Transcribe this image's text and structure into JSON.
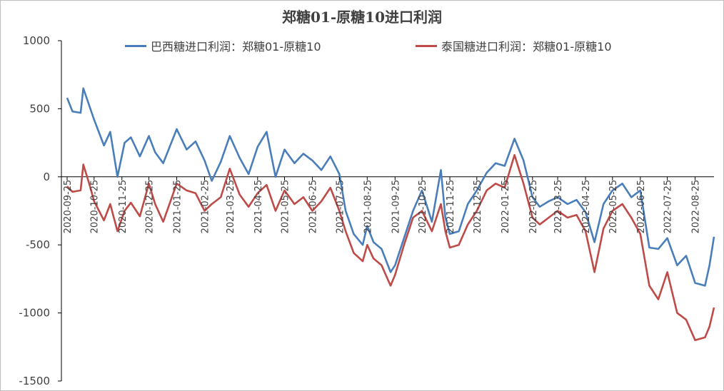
{
  "chart_data": {
    "type": "line",
    "title": "郑糖01-原糖10进口利润",
    "xlabel": "",
    "ylabel": "",
    "ylim": [
      -1500,
      1000
    ],
    "yticks": [
      1000,
      500,
      0,
      -500,
      -1000,
      -1500
    ],
    "legend_position": "top",
    "grid": false,
    "x_tick_labels": [
      "2020-09-25",
      "2020-10-25",
      "2020-11-25",
      "2020-12-25",
      "2021-01-25",
      "2021-02-25",
      "2021-03-25",
      "2021-04-25",
      "2021-05-25",
      "2021-06-25",
      "2021-07-25",
      "2021-08-25",
      "2021-09-25",
      "2021-10-25",
      "2021-11-25",
      "2021-12-25",
      "2022-01-25",
      "2022-02-25",
      "2022-03-25",
      "2022-04-25",
      "2022-05-25",
      "2022-06-25",
      "2022-07-25",
      "2022-08-25"
    ],
    "series": [
      {
        "name": "巴西糖进口利润：郑糖01-原糖10",
        "color": "#4a7ebb",
        "points": [
          [
            "2020-09-25",
            580
          ],
          [
            "2020-10-01",
            480
          ],
          [
            "2020-10-10",
            470
          ],
          [
            "2020-10-13",
            650
          ],
          [
            "2020-10-25",
            420
          ],
          [
            "2020-11-05",
            230
          ],
          [
            "2020-11-12",
            330
          ],
          [
            "2020-11-20",
            0
          ],
          [
            "2020-11-28",
            250
          ],
          [
            "2020-12-05",
            290
          ],
          [
            "2020-12-15",
            150
          ],
          [
            "2020-12-25",
            300
          ],
          [
            "2021-01-01",
            180
          ],
          [
            "2021-01-10",
            100
          ],
          [
            "2021-01-25",
            350
          ],
          [
            "2021-02-05",
            200
          ],
          [
            "2021-02-15",
            260
          ],
          [
            "2021-02-25",
            120
          ],
          [
            "2021-03-05",
            -30
          ],
          [
            "2021-03-15",
            110
          ],
          [
            "2021-03-25",
            300
          ],
          [
            "2021-04-05",
            140
          ],
          [
            "2021-04-15",
            20
          ],
          [
            "2021-04-25",
            220
          ],
          [
            "2021-05-05",
            330
          ],
          [
            "2021-05-15",
            0
          ],
          [
            "2021-05-25",
            200
          ],
          [
            "2021-06-05",
            100
          ],
          [
            "2021-06-15",
            170
          ],
          [
            "2021-06-25",
            120
          ],
          [
            "2021-07-05",
            50
          ],
          [
            "2021-07-15",
            150
          ],
          [
            "2021-07-25",
            20
          ],
          [
            "2021-08-01",
            -250
          ],
          [
            "2021-08-10",
            -420
          ],
          [
            "2021-08-20",
            -500
          ],
          [
            "2021-08-25",
            -360
          ],
          [
            "2021-09-01",
            -480
          ],
          [
            "2021-09-10",
            -530
          ],
          [
            "2021-09-20",
            -700
          ],
          [
            "2021-09-25",
            -650
          ],
          [
            "2021-10-05",
            -450
          ],
          [
            "2021-10-15",
            -250
          ],
          [
            "2021-10-25",
            -100
          ],
          [
            "2021-11-05",
            -330
          ],
          [
            "2021-11-15",
            50
          ],
          [
            "2021-11-20",
            -300
          ],
          [
            "2021-11-25",
            -420
          ],
          [
            "2021-12-05",
            -400
          ],
          [
            "2021-12-15",
            -200
          ],
          [
            "2021-12-25",
            -100
          ],
          [
            "2022-01-05",
            30
          ],
          [
            "2022-01-15",
            100
          ],
          [
            "2022-01-25",
            80
          ],
          [
            "2022-02-05",
            280
          ],
          [
            "2022-02-15",
            120
          ],
          [
            "2022-02-25",
            -150
          ],
          [
            "2022-03-05",
            -220
          ],
          [
            "2022-03-15",
            -180
          ],
          [
            "2022-03-25",
            -150
          ],
          [
            "2022-04-05",
            -200
          ],
          [
            "2022-04-15",
            -170
          ],
          [
            "2022-04-25",
            -260
          ],
          [
            "2022-05-05",
            -480
          ],
          [
            "2022-05-15",
            -200
          ],
          [
            "2022-05-25",
            -100
          ],
          [
            "2022-06-05",
            -50
          ],
          [
            "2022-06-15",
            -150
          ],
          [
            "2022-06-25",
            -100
          ],
          [
            "2022-07-05",
            -520
          ],
          [
            "2022-07-15",
            -530
          ],
          [
            "2022-07-25",
            -450
          ],
          [
            "2022-08-05",
            -650
          ],
          [
            "2022-08-15",
            -580
          ],
          [
            "2022-08-25",
            -780
          ],
          [
            "2022-09-05",
            -800
          ],
          [
            "2022-09-10",
            -650
          ],
          [
            "2022-09-15",
            -440
          ]
        ]
      },
      {
        "name": "泰国糖进口利润：郑糖01-原糖10",
        "color": "#be4b48",
        "points": [
          [
            "2020-09-25",
            -70
          ],
          [
            "2020-10-01",
            -110
          ],
          [
            "2020-10-10",
            -100
          ],
          [
            "2020-10-13",
            90
          ],
          [
            "2020-10-20",
            -60
          ],
          [
            "2020-10-25",
            -180
          ],
          [
            "2020-11-05",
            -320
          ],
          [
            "2020-11-12",
            -200
          ],
          [
            "2020-11-20",
            -400
          ],
          [
            "2020-11-28",
            -250
          ],
          [
            "2020-12-05",
            -190
          ],
          [
            "2020-12-15",
            -290
          ],
          [
            "2020-12-25",
            -50
          ],
          [
            "2021-01-01",
            -200
          ],
          [
            "2021-01-10",
            -330
          ],
          [
            "2021-01-25",
            -50
          ],
          [
            "2021-02-05",
            -100
          ],
          [
            "2021-02-15",
            -120
          ],
          [
            "2021-02-25",
            -250
          ],
          [
            "2021-03-05",
            -200
          ],
          [
            "2021-03-15",
            -150
          ],
          [
            "2021-03-25",
            60
          ],
          [
            "2021-04-05",
            -130
          ],
          [
            "2021-04-15",
            -220
          ],
          [
            "2021-04-25",
            -120
          ],
          [
            "2021-05-05",
            -60
          ],
          [
            "2021-05-15",
            -250
          ],
          [
            "2021-05-25",
            -100
          ],
          [
            "2021-06-05",
            -200
          ],
          [
            "2021-06-15",
            -150
          ],
          [
            "2021-06-25",
            -250
          ],
          [
            "2021-07-05",
            -180
          ],
          [
            "2021-07-15",
            -80
          ],
          [
            "2021-07-25",
            -250
          ],
          [
            "2021-08-01",
            -400
          ],
          [
            "2021-08-10",
            -560
          ],
          [
            "2021-08-20",
            -620
          ],
          [
            "2021-08-25",
            -500
          ],
          [
            "2021-09-01",
            -600
          ],
          [
            "2021-09-10",
            -650
          ],
          [
            "2021-09-20",
            -800
          ],
          [
            "2021-09-25",
            -720
          ],
          [
            "2021-10-05",
            -500
          ],
          [
            "2021-10-15",
            -300
          ],
          [
            "2021-10-25",
            -250
          ],
          [
            "2021-11-05",
            -400
          ],
          [
            "2021-11-15",
            -200
          ],
          [
            "2021-11-20",
            -400
          ],
          [
            "2021-11-25",
            -520
          ],
          [
            "2021-12-05",
            -500
          ],
          [
            "2021-12-15",
            -350
          ],
          [
            "2021-12-25",
            -250
          ],
          [
            "2022-01-05",
            -100
          ],
          [
            "2022-01-15",
            -50
          ],
          [
            "2022-01-25",
            -80
          ],
          [
            "2022-02-05",
            160
          ],
          [
            "2022-02-15",
            -50
          ],
          [
            "2022-02-25",
            -300
          ],
          [
            "2022-03-05",
            -350
          ],
          [
            "2022-03-15",
            -300
          ],
          [
            "2022-03-25",
            -250
          ],
          [
            "2022-04-05",
            -300
          ],
          [
            "2022-04-15",
            -280
          ],
          [
            "2022-04-25",
            -400
          ],
          [
            "2022-05-05",
            -700
          ],
          [
            "2022-05-15",
            -380
          ],
          [
            "2022-05-25",
            -250
          ],
          [
            "2022-06-05",
            -200
          ],
          [
            "2022-06-15",
            -300
          ],
          [
            "2022-06-25",
            -420
          ],
          [
            "2022-07-05",
            -800
          ],
          [
            "2022-07-15",
            -900
          ],
          [
            "2022-07-25",
            -700
          ],
          [
            "2022-08-05",
            -1000
          ],
          [
            "2022-08-15",
            -1050
          ],
          [
            "2022-08-25",
            -1200
          ],
          [
            "2022-09-05",
            -1180
          ],
          [
            "2022-09-10",
            -1100
          ],
          [
            "2022-09-15",
            -960
          ]
        ]
      }
    ]
  }
}
